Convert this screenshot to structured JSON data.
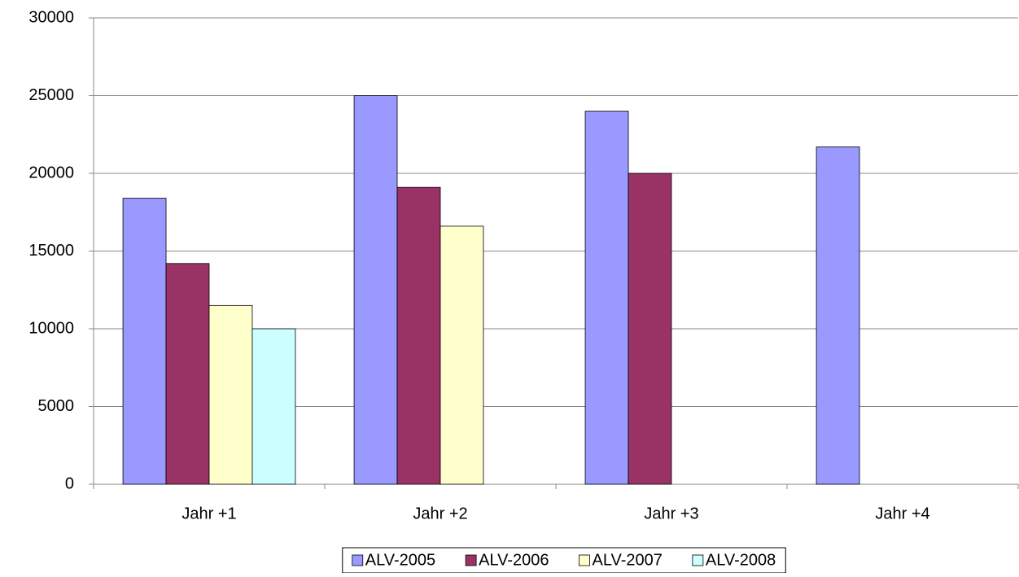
{
  "chart_data": {
    "type": "bar",
    "categories": [
      "Jahr +1",
      "Jahr +2",
      "Jahr +3",
      "Jahr +4"
    ],
    "series": [
      {
        "name": "ALV-2005",
        "color": "#9999ff",
        "values": [
          18400,
          25000,
          24000,
          21700
        ]
      },
      {
        "name": "ALV-2006",
        "color": "#993366",
        "values": [
          14200,
          19100,
          20000,
          null
        ]
      },
      {
        "name": "ALV-2007",
        "color": "#ffffcc",
        "values": [
          11500,
          16600,
          null,
          null
        ]
      },
      {
        "name": "ALV-2008",
        "color": "#ccffff",
        "values": [
          10000,
          null,
          null,
          null
        ]
      }
    ],
    "ylim": [
      0,
      30000
    ],
    "yticks": [
      0,
      5000,
      10000,
      15000,
      20000,
      25000,
      30000
    ],
    "grid": true,
    "legend": "bottom"
  }
}
